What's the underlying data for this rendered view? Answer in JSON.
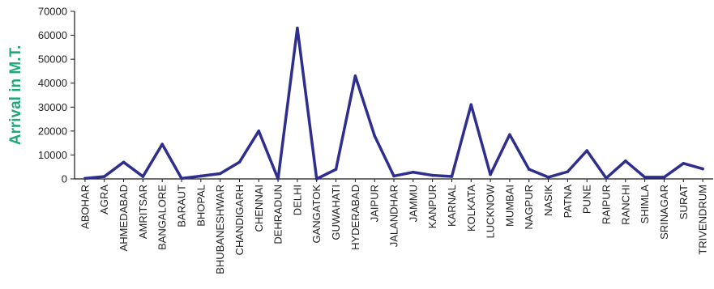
{
  "colors": {
    "line": "#2e2e8f",
    "axis": "#1a1a1a",
    "ylabel": "#1fa87a"
  },
  "chart_data": {
    "type": "line",
    "ylabel": "Arrival in M.T.",
    "xlabel": "",
    "ylim": [
      0,
      70000
    ],
    "yticks": [
      0,
      10000,
      20000,
      30000,
      40000,
      50000,
      60000,
      70000
    ],
    "grid": false,
    "categories": [
      "ABOHAR",
      "AGRA",
      "AHMEDABAD",
      "AMRITSAR",
      "BANGALORE",
      "BARAUT",
      "BHOPAL",
      "BHUBANESHWAR",
      "CHANDIGARH",
      "CHENNAI",
      "DEHRADUN",
      "DELHI",
      "GANGATOK",
      "GUWAHATI",
      "HYDERABAD",
      "JAIPUR",
      "JALANDHAR",
      "JAMMU",
      "KANPUR",
      "KARNAL",
      "KOLKATA",
      "LUCKNOW",
      "MUMBAI",
      "NAGPUR",
      "NASIK",
      "PATNA",
      "PUNE",
      "RAIPUR",
      "RANCHI",
      "SHIMLA",
      "SRINAGAR",
      "SURAT",
      "TRIVENDRUM"
    ],
    "series": [
      {
        "values": [
          200,
          1000,
          7000,
          1000,
          14500,
          200,
          1200,
          2200,
          7000,
          20000,
          0,
          63000,
          0,
          4000,
          43000,
          18000,
          1200,
          2800,
          1500,
          1000,
          31000,
          1800,
          18500,
          4000,
          700,
          3000,
          11800,
          300,
          7500,
          700,
          700,
          6500,
          4200
        ]
      }
    ]
  }
}
